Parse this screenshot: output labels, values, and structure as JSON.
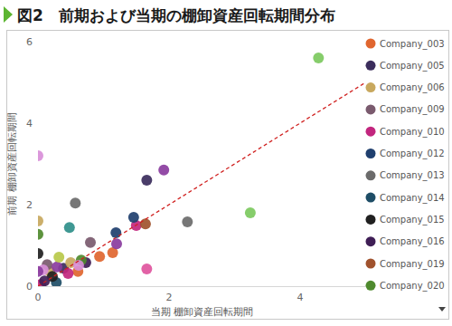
{
  "chart_data": {
    "type": "scatter",
    "title": "図2　前期および当期の棚卸資産回転期間分布",
    "xlabel": "当期 棚卸資産回転期間",
    "ylabel": "前期 棚卸資産回転期間",
    "xlim": [
      0,
      5
    ],
    "ylim": [
      0,
      6
    ],
    "xticks": [
      0,
      2,
      4
    ],
    "yticks": [
      0,
      2,
      4,
      6
    ],
    "grid": false,
    "legend": "right",
    "marker": "circle",
    "series": [
      {
        "name": "Company_003",
        "color": "#e0662f",
        "x": [
          1.14,
          0.61,
          0.94
        ],
        "values": [
          0.82,
          0.36,
          0.73
        ]
      },
      {
        "name": "Company_005",
        "color": "#3b2d5c",
        "x": [
          1.66,
          0.39
        ],
        "values": [
          2.6,
          0.44
        ]
      },
      {
        "name": "Company_006",
        "color": "#c8a85e",
        "x": [
          0,
          0.18,
          0.5
        ],
        "values": [
          1.6,
          0.36,
          0.58
        ]
      },
      {
        "name": "Company_009",
        "color": "#7a5a6e",
        "x": [
          0.8,
          0.14
        ],
        "values": [
          1.07,
          0.53
        ]
      },
      {
        "name": "Company_010",
        "color": "#c2267e",
        "x": [
          1.5,
          0.46,
          0.04
        ],
        "values": [
          1.49,
          0.31,
          0.04
        ]
      },
      {
        "name": "Company_012",
        "color": "#1f3f6e",
        "x": [
          1.19,
          1.46
        ],
        "values": [
          1.31,
          1.69
        ]
      },
      {
        "name": "Company_013",
        "color": "#6b6b6b",
        "x": [
          2.28,
          0.57
        ],
        "values": [
          1.58,
          2.04
        ]
      },
      {
        "name": "Company_014",
        "color": "#1e4d66",
        "x": [
          0.28
        ],
        "values": [
          0.09
        ]
      },
      {
        "name": "Company_015",
        "color": "#202020",
        "x": [
          0,
          0.22
        ],
        "values": [
          0.8,
          0.24
        ]
      },
      {
        "name": "Company_016",
        "color": "#3f1e55",
        "x": [
          0.73,
          0.1
        ],
        "values": [
          0.58,
          0.13
        ]
      },
      {
        "name": "Company_019",
        "color": "#a0522d",
        "x": [
          1.64
        ],
        "values": [
          1.53
        ]
      },
      {
        "name": "Company_020",
        "color": "#4f8a2e",
        "x": [
          0,
          0.66
        ],
        "values": [
          1.27,
          0.64
        ]
      },
      {
        "color": "#7cc95e",
        "x": [
          4.28,
          3.24
        ],
        "values": [
          5.6,
          1.8
        ]
      },
      {
        "color": "#d88fd8",
        "x": [
          0,
          0.62,
          0.08
        ],
        "values": [
          3.2,
          0.51,
          0.4
        ]
      },
      {
        "color": "#8a3c9e",
        "x": [
          1.92,
          1.2,
          0,
          0.29
        ],
        "values": [
          2.85,
          1.04,
          0.36,
          0.47
        ]
      },
      {
        "color": "#2f8f8a",
        "x": [
          0.48
        ],
        "values": [
          1.44
        ]
      },
      {
        "color": "#b9c94a",
        "x": [
          0.32
        ],
        "values": [
          0.71
        ]
      },
      {
        "color": "#e0559e",
        "x": [
          1.66
        ],
        "values": [
          0.42
        ]
      },
      {
        "type": "line",
        "line_style": "dashed",
        "color": "#d0201f",
        "x": [
          0,
          5
        ],
        "values": [
          0,
          5
        ]
      }
    ]
  }
}
